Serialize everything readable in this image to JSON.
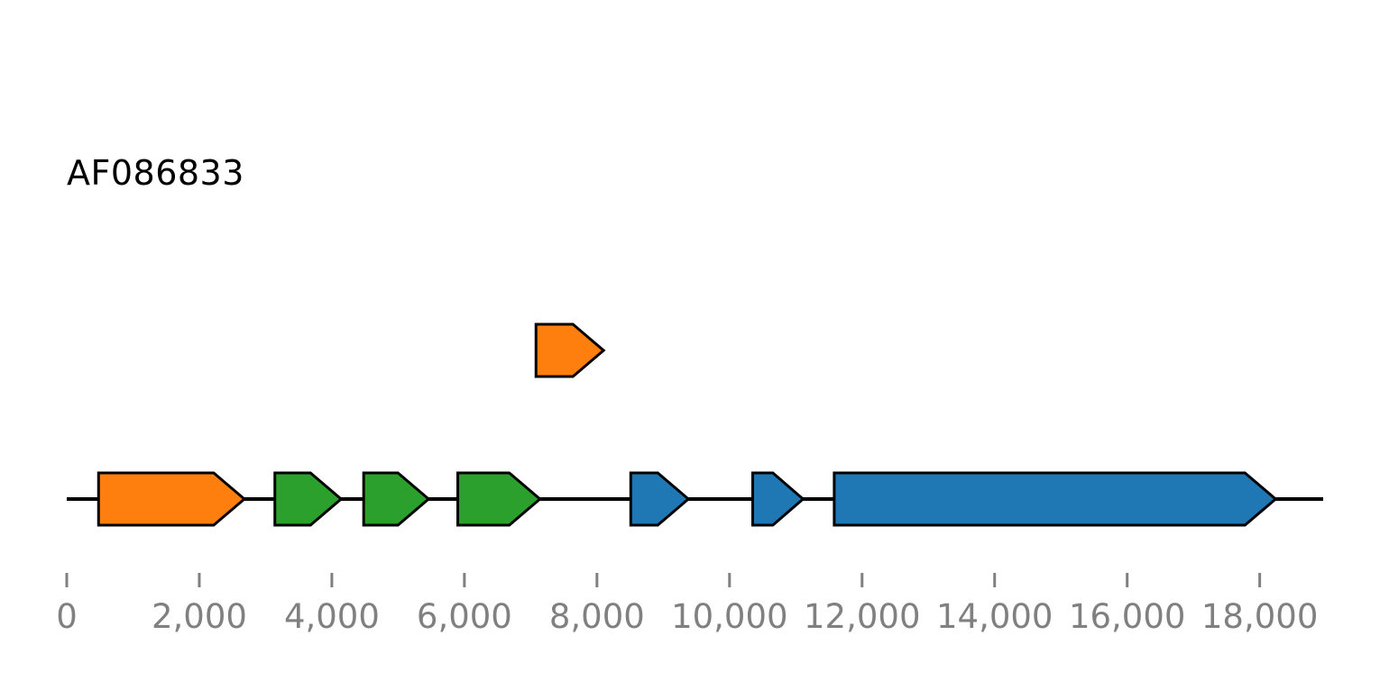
{
  "record": {
    "name": "AF086833"
  },
  "colors": {
    "orange": "#ff7f0e",
    "green": "#2ca02c",
    "blue": "#1f77b4",
    "outline": "#000000",
    "axis": "#808080"
  },
  "sequence": {
    "start": 0,
    "end": 19000
  },
  "features": [
    {
      "start": 480,
      "end": 2680,
      "strand": 1,
      "track": 0,
      "color": "#ff7f0e"
    },
    {
      "start": 3140,
      "end": 4140,
      "strand": 1,
      "track": 0,
      "color": "#2ca02c"
    },
    {
      "start": 4480,
      "end": 5460,
      "strand": 1,
      "track": 0,
      "color": "#2ca02c"
    },
    {
      "start": 5900,
      "end": 7140,
      "strand": 1,
      "track": 0,
      "color": "#2ca02c"
    },
    {
      "start": 8510,
      "end": 9380,
      "strand": 1,
      "track": 0,
      "color": "#1f77b4"
    },
    {
      "start": 10350,
      "end": 11110,
      "strand": 1,
      "track": 0,
      "color": "#1f77b4"
    },
    {
      "start": 11580,
      "end": 18240,
      "strand": 1,
      "track": 0,
      "color": "#1f77b4"
    },
    {
      "start": 7080,
      "end": 8100,
      "strand": 1,
      "track": 1,
      "color": "#ff7f0e"
    }
  ],
  "axis": {
    "ticks": [
      {
        "value": 0,
        "label": "0"
      },
      {
        "value": 2000,
        "label": "2,000"
      },
      {
        "value": 4000,
        "label": "4,000"
      },
      {
        "value": 6000,
        "label": "6,000"
      },
      {
        "value": 8000,
        "label": "8,000"
      },
      {
        "value": 10000,
        "label": "10,000"
      },
      {
        "value": 12000,
        "label": "12,000"
      },
      {
        "value": 14000,
        "label": "14,000"
      },
      {
        "value": 16000,
        "label": "16,000"
      },
      {
        "value": 18000,
        "label": "18,000"
      }
    ]
  }
}
